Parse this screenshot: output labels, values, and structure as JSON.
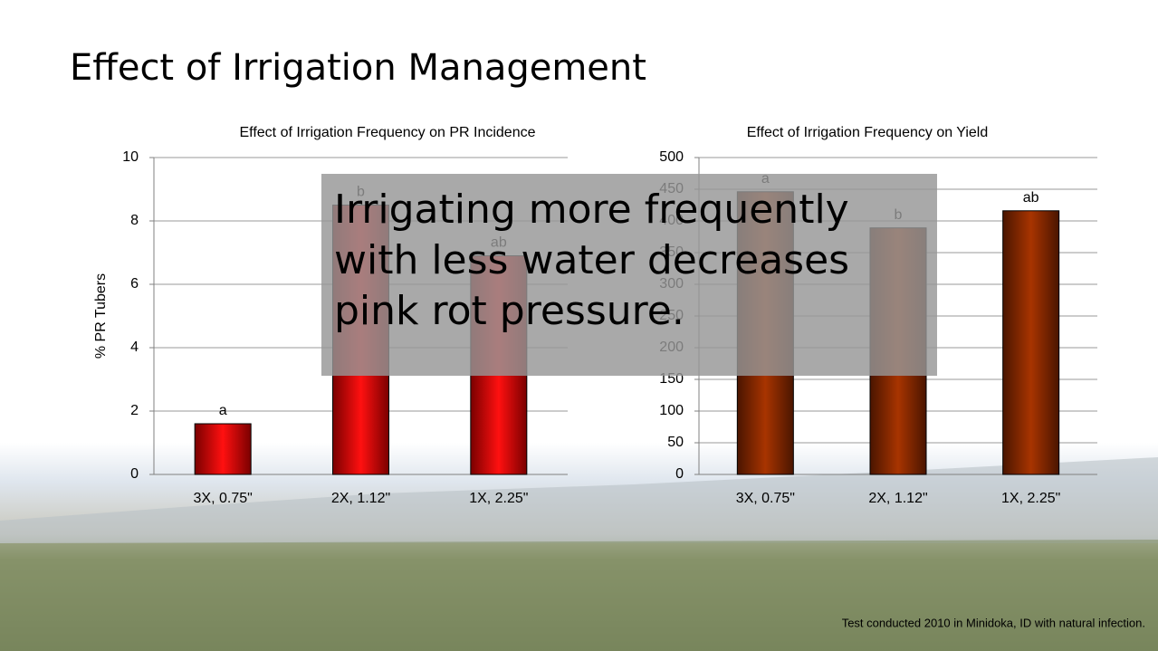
{
  "slide": {
    "title": "Effect of Irrigation Management",
    "callout": "Irrigating more frequently with less water decreases pink rot pressure.",
    "footnote": "Test conducted 2010 in Minidoka, ID with natural infection."
  },
  "chart_data": [
    {
      "type": "bar",
      "title": "Effect of Irrigation Frequency on PR Incidence",
      "y_label": "% PR Tubers",
      "categories": [
        "3X, 0.75\"",
        "2X, 1.12\"",
        "1X, 2.25\""
      ],
      "values": [
        1.6,
        8.5,
        6.9
      ],
      "significance_labels": [
        "a",
        "b",
        "ab"
      ],
      "color": "#e30000",
      "ylim": [
        0,
        10
      ],
      "yticks": [
        0,
        2,
        4,
        6,
        8,
        10
      ],
      "grid": true
    },
    {
      "type": "bar",
      "title": "Effect of Irrigation Frequency on Yield",
      "categories": [
        "3X, 0.75\"",
        "2X, 1.12\"",
        "1X, 2.25\""
      ],
      "values": [
        446,
        389,
        416
      ],
      "significance_labels": [
        "a",
        "b",
        "ab"
      ],
      "color": "#8b2a00",
      "ylim": [
        0,
        500
      ],
      "yticks": [
        0,
        50,
        100,
        150,
        200,
        250,
        300,
        350,
        400,
        450,
        500
      ],
      "grid": true
    }
  ]
}
